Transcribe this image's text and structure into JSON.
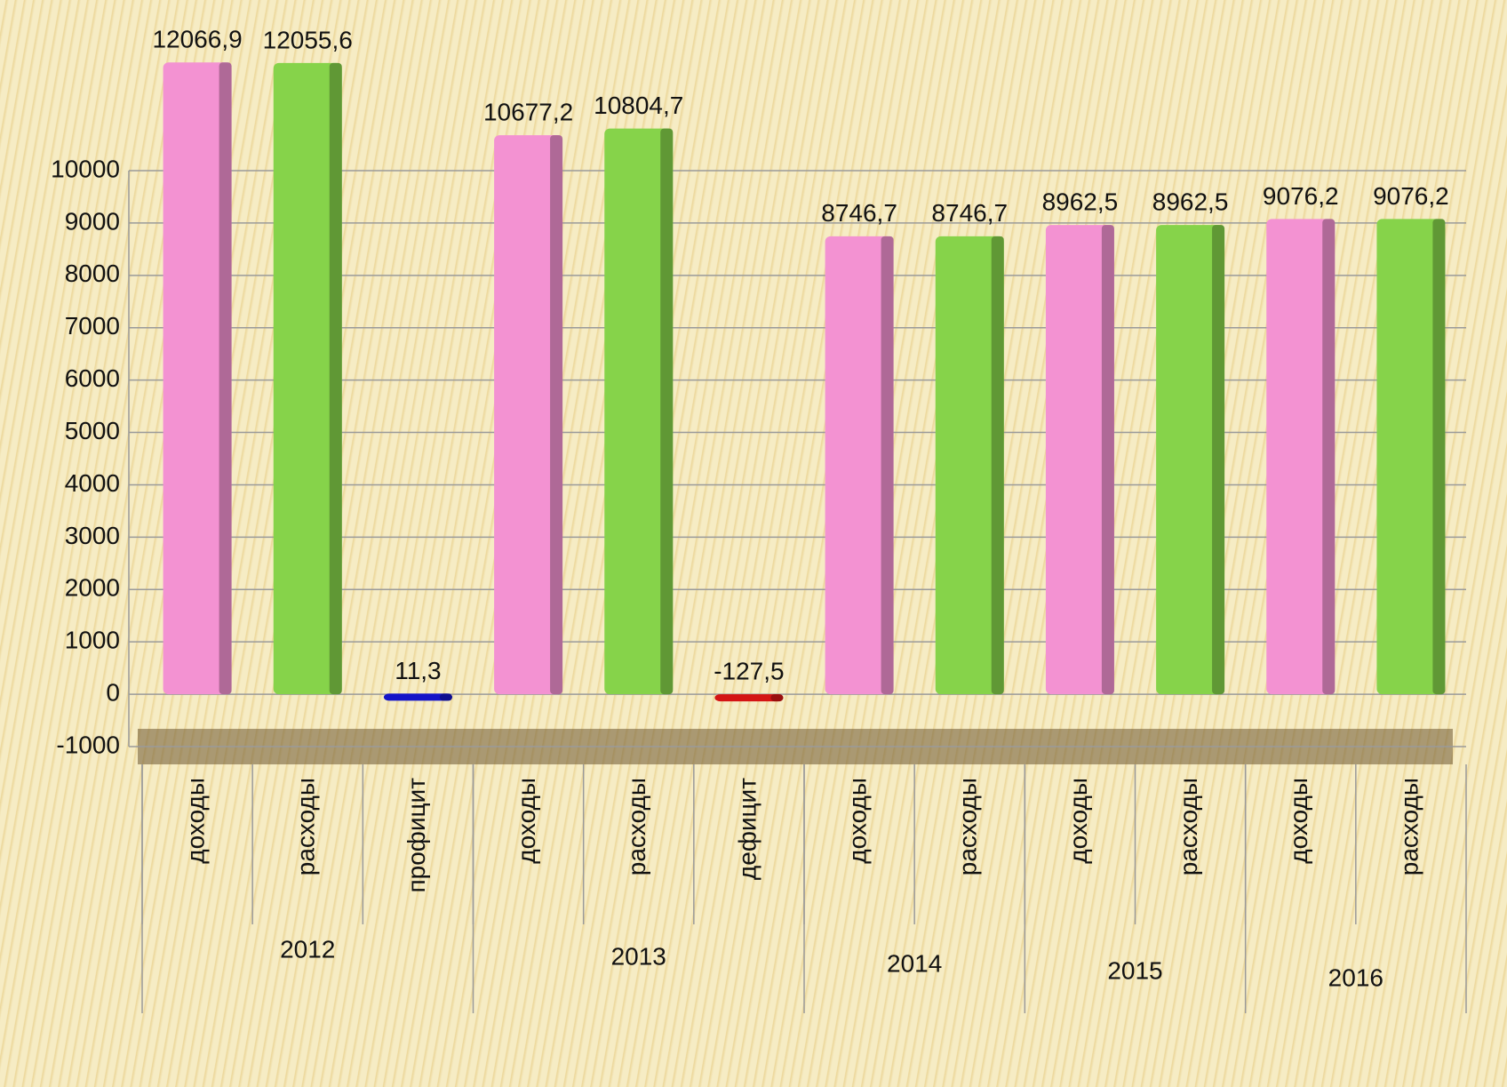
{
  "chart_data": {
    "type": "bar",
    "groups": [
      {
        "label": "2012",
        "categories": [
          "доходы",
          "расходы",
          "профицит"
        ]
      },
      {
        "label": "2013",
        "categories": [
          "доходы",
          "расходы",
          "дефицит"
        ]
      },
      {
        "label": "2014",
        "categories": [
          "доходы",
          "расходы"
        ]
      },
      {
        "label": "2015",
        "categories": [
          "доходы",
          "расходы"
        ]
      },
      {
        "label": "2016",
        "categories": [
          "доходы",
          "расходы"
        ]
      }
    ],
    "values": [
      12066.9,
      12055.6,
      11.3,
      10677.2,
      10804.7,
      -127.5,
      8746.7,
      8746.7,
      8962.5,
      8962.5,
      9076.2,
      9076.2
    ],
    "value_labels": [
      "12066,9",
      "12055,6",
      "11,3",
      "10677,2",
      "10804,7",
      "-127,5",
      "8746,7",
      "8746,7",
      "8962,5",
      "8962,5",
      "9076,2",
      "9076,2"
    ],
    "colors": [
      "#f392d2",
      "#86d34a",
      "#1414c8",
      "#f392d2",
      "#86d34a",
      "#d41414",
      "#f392d2",
      "#86d34a",
      "#f392d2",
      "#86d34a",
      "#f392d2",
      "#86d34a"
    ],
    "ylim": [
      -1000,
      10000
    ],
    "yticks": [
      -1000,
      0,
      1000,
      2000,
      3000,
      4000,
      5000,
      6000,
      7000,
      8000,
      9000,
      10000
    ],
    "grid": true
  }
}
